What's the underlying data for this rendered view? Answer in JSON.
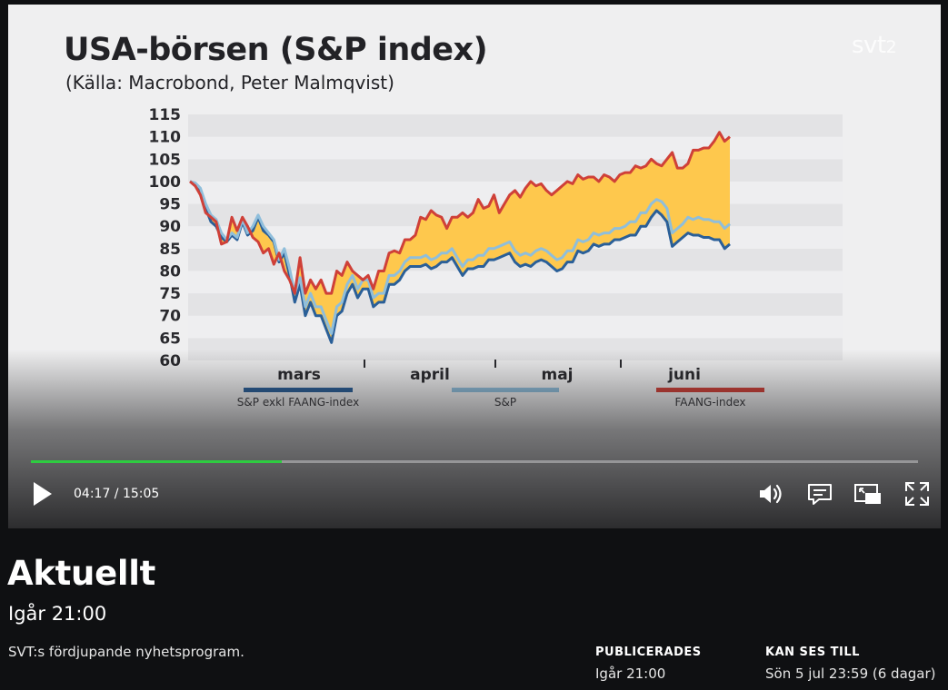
{
  "video": {
    "chart_title": "USA-börsen (S&P index)",
    "chart_source": "(Källa: Macrobond, Peter Malmqvist)",
    "channel_logo": "svt2",
    "channel_logo_text": "svt",
    "channel_logo_num": "2"
  },
  "chart_data": {
    "type": "line",
    "title": "USA-börsen (S&P index)",
    "subtitle": "(Källa: Macrobond, Peter Malmqvist)",
    "ylim": [
      60,
      115
    ],
    "yticks": [
      "60",
      "65",
      "70",
      "75",
      "80",
      "85",
      "90",
      "95",
      "100",
      "105",
      "110",
      "115"
    ],
    "month_labels": [
      "mars",
      "april",
      "maj",
      "juni"
    ],
    "grid": "alternating horizontal bands",
    "fill_between": "FAANG-index and S&P exkl FAANG-index",
    "fill_color": "#fec84d",
    "series": [
      {
        "name": "S&P exkl FAANG-index",
        "color": "#2a5f98",
        "values": [
          100,
          99.5,
          98,
          94,
          91,
          90,
          87.5,
          86.5,
          88,
          87,
          91,
          88,
          89,
          92,
          89,
          88,
          86.5,
          82,
          84,
          79,
          73,
          77,
          70,
          73,
          70,
          70,
          67,
          64,
          70,
          71,
          75,
          77,
          74,
          76,
          76,
          72,
          73,
          73,
          77,
          77,
          78,
          80,
          81,
          81,
          81,
          81.5,
          80.5,
          81,
          82,
          82,
          83,
          81,
          79,
          80.5,
          80.5,
          81,
          81,
          82.5,
          82.5,
          83,
          83.5,
          84,
          82,
          81,
          81.5,
          81,
          82,
          82.5,
          82,
          81,
          80,
          80.5,
          82,
          82,
          84.5,
          84,
          84.5,
          86,
          85.5,
          86,
          86,
          87,
          87,
          87.5,
          88,
          88,
          90,
          90,
          92,
          93.5,
          92.5,
          91,
          85.5,
          86.5,
          87.5,
          88.5,
          88,
          88,
          87.5,
          87.5,
          87,
          87,
          85,
          86
        ]
      },
      {
        "name": "S&P",
        "color": "#8fbedb",
        "values": [
          100,
          99.7,
          98.5,
          95,
          92.5,
          91.5,
          88.5,
          87,
          88.5,
          87.5,
          91.5,
          88.5,
          90,
          92.5,
          90,
          88.5,
          87,
          82.5,
          85,
          80.5,
          75,
          78.5,
          72,
          75,
          72,
          72,
          69,
          66,
          72,
          73,
          77,
          79,
          76,
          78,
          78,
          74,
          75,
          75,
          79,
          79,
          80,
          82,
          83,
          83,
          83,
          83.5,
          82.5,
          83,
          84,
          84,
          85,
          83,
          81,
          82.5,
          82.5,
          83.5,
          83.5,
          85,
          85,
          85.5,
          86,
          86.5,
          84.5,
          83.5,
          84,
          83.5,
          84.5,
          85,
          84.5,
          83.5,
          82.5,
          83,
          84.5,
          84.5,
          87,
          86.5,
          87,
          88.5,
          88,
          88.5,
          88.5,
          89.5,
          89.5,
          90,
          91,
          91,
          93,
          93,
          95,
          96,
          95.5,
          94,
          88.5,
          89.5,
          90.5,
          92,
          91.5,
          92,
          91.5,
          91.5,
          91,
          91,
          89.5,
          90.5
        ]
      },
      {
        "name": "FAANG-index",
        "color": "#cf4038",
        "values": [
          100,
          99,
          97,
          93,
          92,
          91,
          86,
          86.5,
          92,
          89,
          92,
          90,
          87.5,
          86.5,
          84,
          85,
          81.5,
          84,
          80,
          78,
          75,
          83,
          75,
          78,
          76,
          78,
          75,
          75,
          80,
          79,
          82,
          80,
          79,
          78,
          79,
          76,
          80,
          80,
          84,
          84.5,
          84,
          87,
          87,
          88,
          92,
          91.5,
          93.5,
          92.5,
          92,
          89.5,
          92,
          92,
          93,
          92,
          93,
          96,
          94,
          94.5,
          97,
          93,
          95,
          97,
          98,
          96.5,
          98.5,
          100,
          99,
          99.5,
          98,
          97,
          98,
          99,
          100,
          99.5,
          101.5,
          100.5,
          101,
          101,
          100,
          101.5,
          101,
          100,
          101.5,
          102,
          102,
          103.5,
          103,
          103.5,
          105,
          104,
          103.5,
          105,
          106.5,
          103,
          103,
          104,
          107,
          107,
          107.5,
          107.5,
          109,
          111,
          109,
          110
        ]
      }
    ]
  },
  "player": {
    "time_display": "04:17 / 15:05",
    "progress": 0.283,
    "progress_color": "#2ecc40"
  },
  "program": {
    "title": "Aktuellt",
    "broadcast_time": "Igår 21:00",
    "description": "SVT:s fördjupande nyhetsprogram.",
    "published_label": "PUBLICERADES",
    "published_value": "Igår 21:00",
    "available_label": "KAN SES TILL",
    "available_value": "Sön 5 jul 23:59 (6 dagar)"
  }
}
